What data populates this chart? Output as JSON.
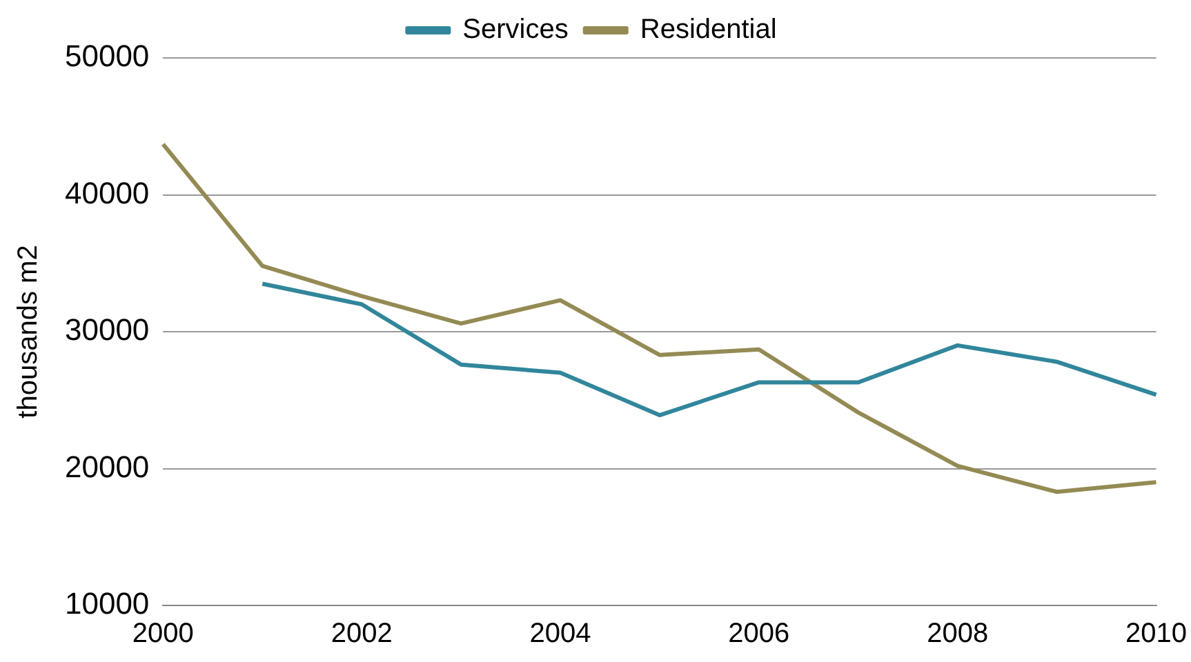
{
  "chart_data": {
    "type": "line",
    "ylabel": "thousands m2",
    "categories": [
      "2000",
      null,
      "2002",
      null,
      "2004",
      null,
      "2006",
      null,
      "2008",
      null,
      "2010"
    ],
    "series": [
      {
        "name": "Services",
        "color": "#31869b",
        "values": [
          null,
          33500,
          32000,
          27600,
          27000,
          23900,
          26300,
          26300,
          29000,
          27800,
          25400
        ]
      },
      {
        "name": "Residential",
        "color": "#948a54",
        "values": [
          43700,
          34800,
          32600,
          30600,
          32300,
          28300,
          28700,
          24100,
          20200,
          18300,
          19000
        ]
      }
    ],
    "ylim": [
      10000,
      50000
    ],
    "yticks": [
      10000,
      20000,
      30000,
      40000,
      50000
    ],
    "grid": "y",
    "legend": "top",
    "marker": "none"
  }
}
